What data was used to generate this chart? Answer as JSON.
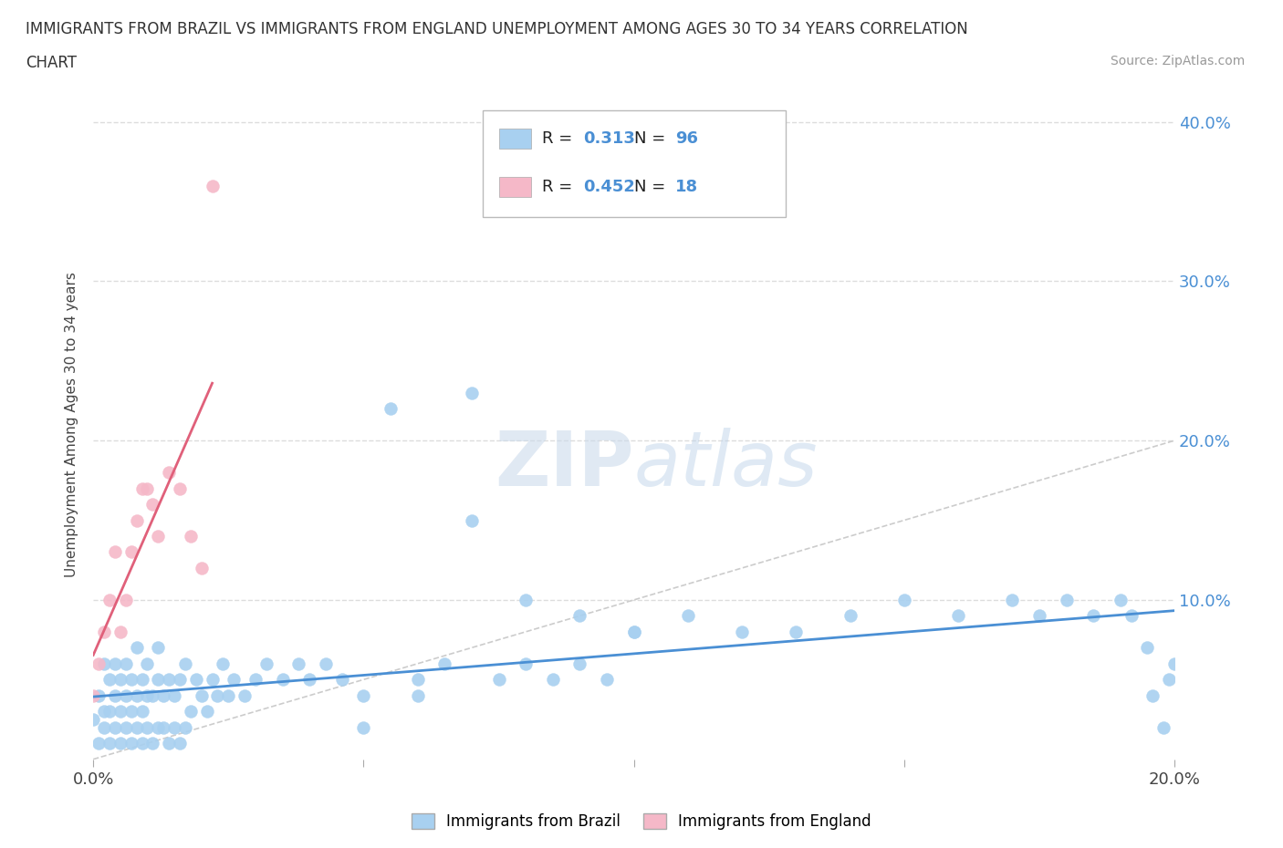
{
  "title_line1": "IMMIGRANTS FROM BRAZIL VS IMMIGRANTS FROM ENGLAND UNEMPLOYMENT AMONG AGES 30 TO 34 YEARS CORRELATION",
  "title_line2": "CHART",
  "source_text": "Source: ZipAtlas.com",
  "ylabel": "Unemployment Among Ages 30 to 34 years",
  "xlim": [
    0.0,
    0.2
  ],
  "ylim": [
    0.0,
    0.42
  ],
  "brazil_color": "#a8d0f0",
  "england_color": "#f5b8c8",
  "brazil_R": 0.313,
  "brazil_N": 96,
  "england_R": 0.452,
  "england_N": 18,
  "trendline_color_brazil": "#4a8fd4",
  "trendline_color_england": "#e0607a",
  "diagonal_color": "#cccccc",
  "grid_color": "#dddddd",
  "bg_color": "#ffffff",
  "watermark_text": "ZIPatlas",
  "brazil_x": [
    0.0,
    0.001,
    0.001,
    0.002,
    0.002,
    0.002,
    0.003,
    0.003,
    0.003,
    0.004,
    0.004,
    0.004,
    0.005,
    0.005,
    0.005,
    0.006,
    0.006,
    0.006,
    0.007,
    0.007,
    0.007,
    0.008,
    0.008,
    0.008,
    0.009,
    0.009,
    0.009,
    0.01,
    0.01,
    0.01,
    0.011,
    0.011,
    0.012,
    0.012,
    0.012,
    0.013,
    0.013,
    0.014,
    0.014,
    0.015,
    0.015,
    0.016,
    0.016,
    0.017,
    0.017,
    0.018,
    0.019,
    0.02,
    0.021,
    0.022,
    0.023,
    0.024,
    0.025,
    0.026,
    0.028,
    0.03,
    0.032,
    0.035,
    0.038,
    0.04,
    0.043,
    0.046,
    0.05,
    0.055,
    0.06,
    0.065,
    0.07,
    0.075,
    0.08,
    0.085,
    0.09,
    0.095,
    0.1,
    0.11,
    0.12,
    0.13,
    0.14,
    0.15,
    0.16,
    0.17,
    0.175,
    0.18,
    0.185,
    0.19,
    0.192,
    0.195,
    0.196,
    0.198,
    0.199,
    0.2,
    0.05,
    0.06,
    0.07,
    0.08,
    0.09,
    0.1
  ],
  "brazil_y": [
    0.025,
    0.01,
    0.04,
    0.02,
    0.03,
    0.06,
    0.01,
    0.03,
    0.05,
    0.02,
    0.04,
    0.06,
    0.01,
    0.03,
    0.05,
    0.02,
    0.04,
    0.06,
    0.01,
    0.03,
    0.05,
    0.02,
    0.04,
    0.07,
    0.01,
    0.03,
    0.05,
    0.02,
    0.04,
    0.06,
    0.01,
    0.04,
    0.02,
    0.05,
    0.07,
    0.02,
    0.04,
    0.01,
    0.05,
    0.02,
    0.04,
    0.01,
    0.05,
    0.02,
    0.06,
    0.03,
    0.05,
    0.04,
    0.03,
    0.05,
    0.04,
    0.06,
    0.04,
    0.05,
    0.04,
    0.05,
    0.06,
    0.05,
    0.06,
    0.05,
    0.06,
    0.05,
    0.04,
    0.22,
    0.05,
    0.06,
    0.23,
    0.05,
    0.06,
    0.05,
    0.06,
    0.05,
    0.08,
    0.09,
    0.08,
    0.08,
    0.09,
    0.1,
    0.09,
    0.1,
    0.09,
    0.1,
    0.09,
    0.1,
    0.09,
    0.07,
    0.04,
    0.02,
    0.05,
    0.06,
    0.02,
    0.04,
    0.15,
    0.1,
    0.09,
    0.08
  ],
  "england_x": [
    0.0,
    0.001,
    0.002,
    0.003,
    0.004,
    0.005,
    0.006,
    0.007,
    0.008,
    0.009,
    0.01,
    0.011,
    0.012,
    0.014,
    0.016,
    0.018,
    0.02,
    0.022
  ],
  "england_y": [
    0.04,
    0.06,
    0.08,
    0.1,
    0.13,
    0.08,
    0.1,
    0.13,
    0.15,
    0.17,
    0.17,
    0.16,
    0.14,
    0.18,
    0.17,
    0.14,
    0.12,
    0.36
  ]
}
